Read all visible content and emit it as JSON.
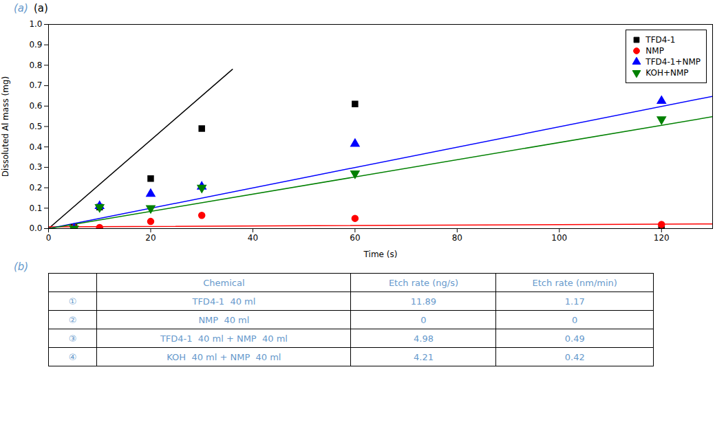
{
  "chart_data": [
    {
      "type": "scatter",
      "xlabel": "Time (s)",
      "ylabel": "Dissoluted Al mass (mg)",
      "xlim": [
        0,
        130
      ],
      "ylim": [
        0,
        1.0
      ],
      "xticks": [
        0,
        20,
        40,
        60,
        80,
        100,
        120
      ],
      "yticks": [
        {
          "value": 0.0,
          "label": "0.0"
        },
        0.1,
        0.2,
        0.3,
        0.4,
        0.5,
        0.6,
        0.7,
        0.8,
        0.9,
        {
          "value": 1.0,
          "label": "1.0"
        }
      ],
      "grid": false,
      "legend": "upper right",
      "annotations": [
        {
          "text": "(a)",
          "color": "#6699cc"
        },
        {
          "text": "(a)",
          "color": "black"
        }
      ],
      "series": [
        {
          "name": "TFD4-1",
          "color": "black",
          "marker": "square",
          "x": [
            5,
            10,
            20,
            30,
            60,
            120
          ],
          "values": [
            0.005,
            0.105,
            0.245,
            0.49,
            0.61,
            0.0
          ],
          "fit_x": [
            0,
            36
          ],
          "fit_values": [
            0.0,
            0.78
          ],
          "fit_color": "black"
        },
        {
          "name": "NMP",
          "color": "red",
          "marker": "circle",
          "x": [
            5,
            10,
            20,
            30,
            60,
            120
          ],
          "values": [
            0.005,
            0.005,
            0.035,
            0.065,
            0.05,
            0.02
          ],
          "fit_x": [
            0,
            130
          ],
          "fit_values": [
            0.008,
            0.023
          ],
          "fit_color": "red"
        },
        {
          "name": "TFD4-1+NMP",
          "color": "blue",
          "marker": "triangle-up",
          "x": [
            5,
            10,
            20,
            30,
            60,
            120
          ],
          "values": [
            0.0,
            0.11,
            0.17,
            0.205,
            0.415,
            0.625
          ],
          "fit_x": [
            0,
            130
          ],
          "fit_values": [
            0.0,
            0.648
          ],
          "fit_color": "blue"
        },
        {
          "name": "KOH+NMP",
          "color": "#008000",
          "marker": "triangle-down",
          "x": [
            5,
            10,
            20,
            30,
            60,
            120
          ],
          "values": [
            0.0,
            0.105,
            0.1,
            0.2,
            0.27,
            0.535
          ],
          "fit_x": [
            0,
            130
          ],
          "fit_values": [
            0.0,
            0.548
          ],
          "fit_color": "#008000"
        }
      ]
    },
    {
      "type": "table",
      "annotations": [
        {
          "text": "(b)",
          "color": "#6699cc"
        }
      ],
      "color": "#6699cc",
      "columns": [
        null,
        "Chemical",
        "Etch rate (ng/s)",
        "Etch rate (nm/min)"
      ],
      "rows": [
        [
          "①",
          "TFD4-1  40 ml",
          "11.89",
          "1.17"
        ],
        [
          "②",
          "NMP  40 ml",
          "0",
          "0"
        ],
        [
          "③",
          "TFD4-1  40 ml + NMP  40 ml",
          "4.98",
          "0.49"
        ],
        [
          "④",
          "KOH  40 ml + NMP  40 ml",
          "4.21",
          "0.42"
        ]
      ]
    }
  ]
}
